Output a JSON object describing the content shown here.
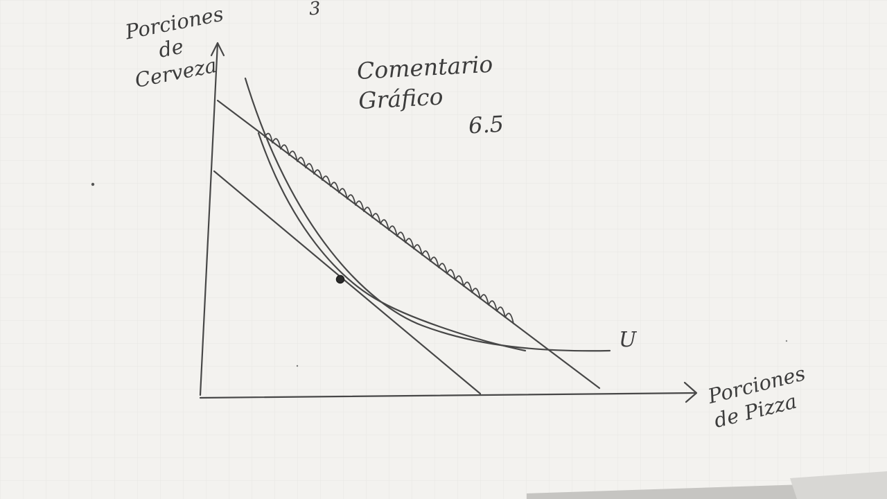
{
  "page_number": "3",
  "y_axis_label": [
    "Porciones",
    "de",
    "Cerveza"
  ],
  "x_axis_label": [
    "Porciones",
    "de Pizza"
  ],
  "comment": [
    "Comentario",
    "Gráfico"
  ],
  "grade": "6.5",
  "indifference_curve_label": "U",
  "colors": {
    "paper": "#f3f2ef",
    "paper_shadow": "#c9c8c5",
    "grid": "#dcdcd8",
    "pencil": "#4a4a4a",
    "ink_dark": "#2b2b2b"
  },
  "icons": {
    "optimum_point": "dot"
  }
}
